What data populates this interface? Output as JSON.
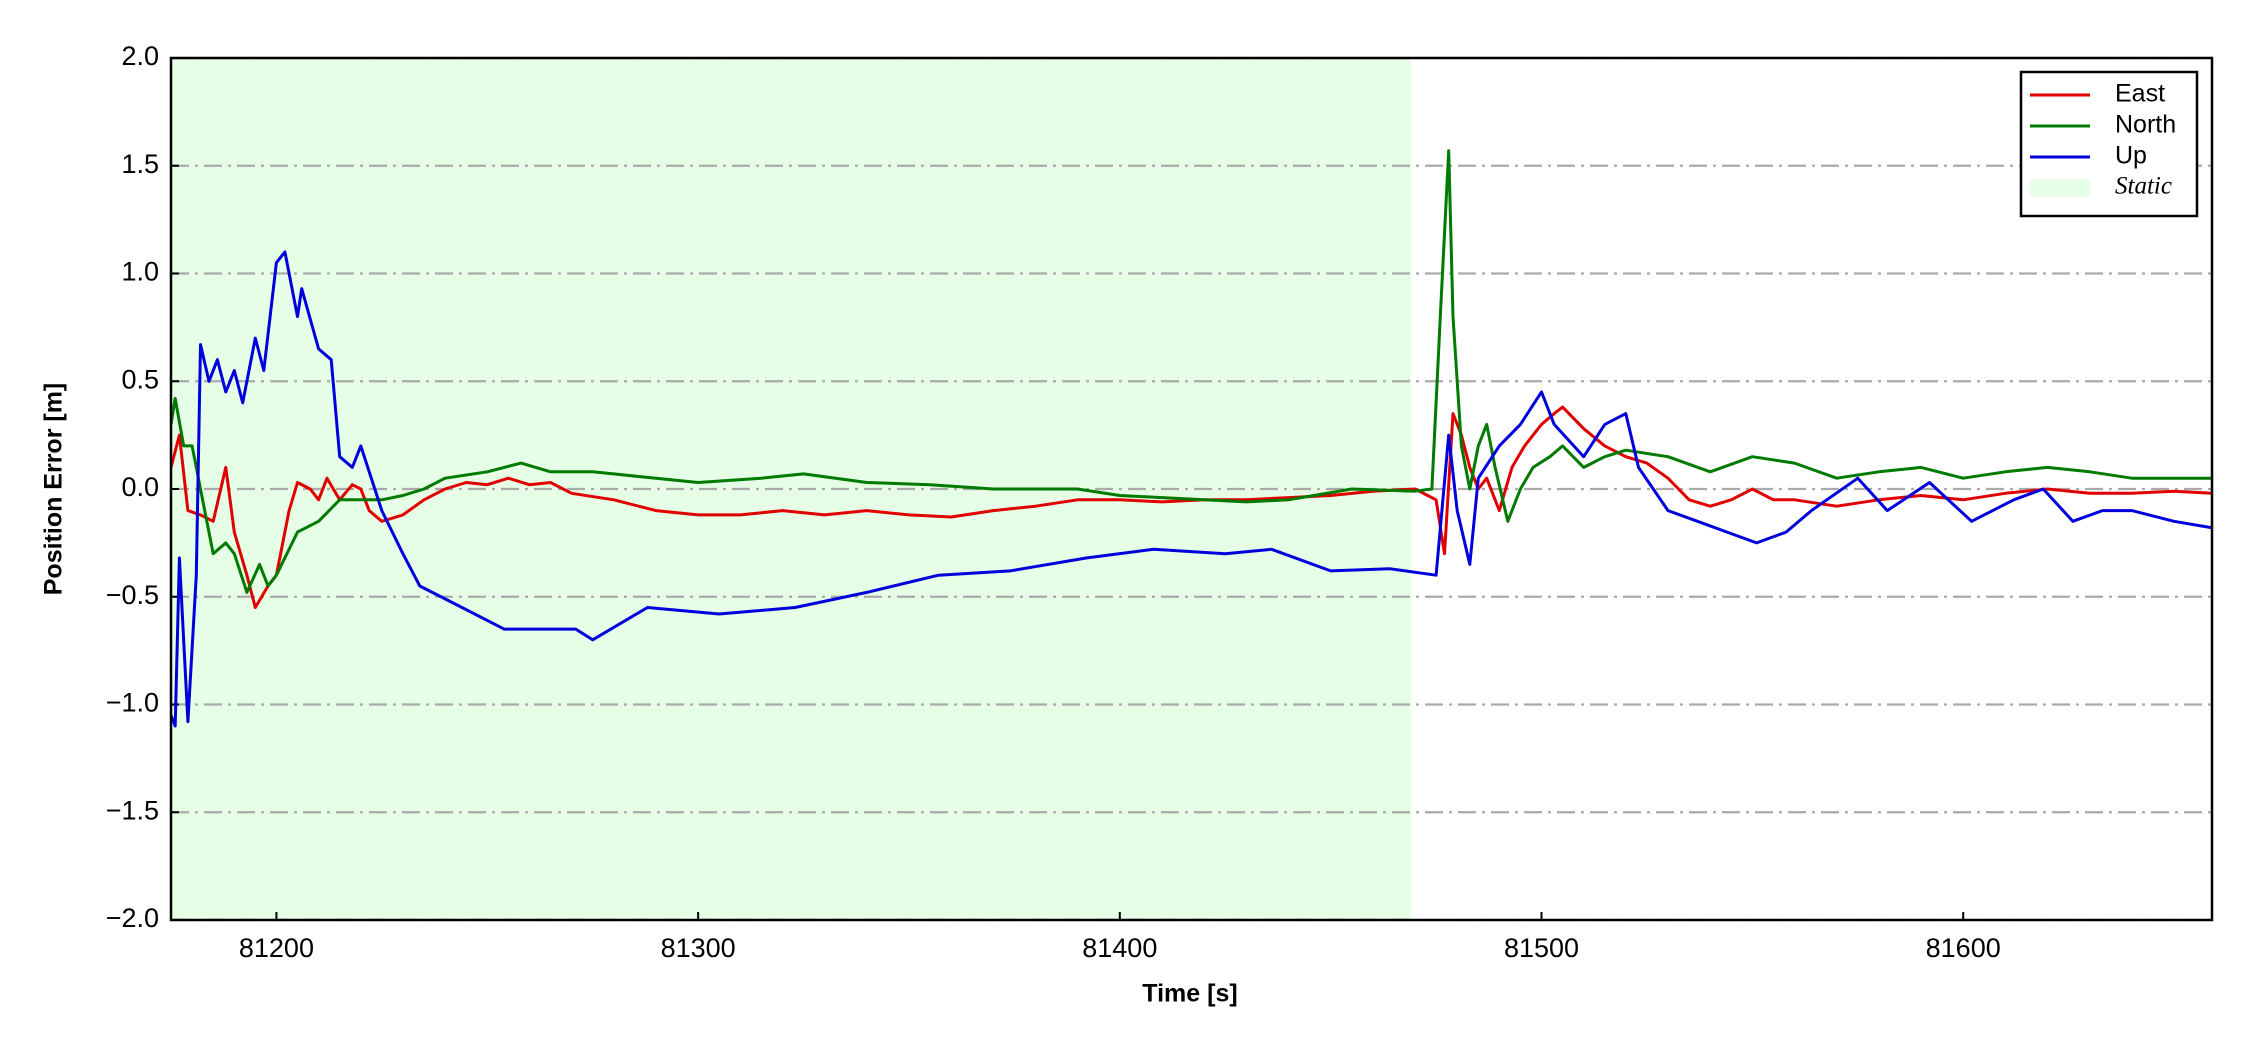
{
  "chart_data": {
    "type": "line",
    "xlabel": "Time [s]",
    "ylabel": "Position Error [m]",
    "xlim": [
      81175,
      81659
    ],
    "ylim": [
      -2,
      2
    ],
    "xticks": [
      81200,
      81300,
      81400,
      81500,
      81600
    ],
    "yticks": [
      {
        "value": -2,
        "label": "−2.0"
      },
      {
        "value": -1.5,
        "label": "−1.5"
      },
      {
        "value": -1,
        "label": "−1.0"
      },
      {
        "value": -0.5,
        "label": "−0.5"
      },
      {
        "value": 0,
        "label": "0.0"
      },
      0.5,
      {
        "value": 1,
        "label": "1.0"
      },
      1.5,
      {
        "value": 2,
        "label": "2.0"
      }
    ],
    "grid": true,
    "legend": "upper right",
    "static_region": {
      "label": "Static",
      "xrange": [
        81175,
        81469
      ],
      "color": "#e6fde6"
    },
    "series": [
      {
        "name": "East",
        "color": "#e00000",
        "x": [
          81175,
          81177,
          81179,
          81182,
          81185,
          81188,
          81190,
          81193,
          81195,
          81198,
          81200,
          81203,
          81205,
          81208,
          81210,
          81212,
          81215,
          81218,
          81220,
          81222,
          81225,
          81230,
          81235,
          81240,
          81245,
          81250,
          81255,
          81260,
          81265,
          81270,
          81280,
          81290,
          81300,
          81310,
          81320,
          81330,
          81340,
          81350,
          81360,
          81370,
          81380,
          81390,
          81400,
          81410,
          81420,
          81430,
          81440,
          81450,
          81460,
          81470,
          81475,
          81477,
          81479,
          81481,
          81483,
          81485,
          81487,
          81490,
          81493,
          81496,
          81500,
          81503,
          81505,
          81510,
          81515,
          81520,
          81525,
          81530,
          81535,
          81540,
          81545,
          81550,
          81555,
          81560,
          81570,
          81580,
          81590,
          81600,
          81610,
          81620,
          81630,
          81640,
          81650,
          81659
        ],
        "values": [
          0.1,
          0.25,
          -0.1,
          -0.12,
          -0.15,
          0.1,
          -0.2,
          -0.4,
          -0.55,
          -0.45,
          -0.4,
          -0.1,
          0.03,
          0.0,
          -0.05,
          0.05,
          -0.05,
          0.02,
          0.0,
          -0.1,
          -0.15,
          -0.12,
          -0.05,
          0.0,
          0.03,
          0.02,
          0.05,
          0.02,
          0.03,
          -0.02,
          -0.05,
          -0.1,
          -0.12,
          -0.12,
          -0.1,
          -0.12,
          -0.1,
          -0.12,
          -0.13,
          -0.1,
          -0.08,
          -0.05,
          -0.05,
          -0.06,
          -0.05,
          -0.05,
          -0.04,
          -0.03,
          -0.01,
          0.0,
          -0.05,
          -0.3,
          0.35,
          0.25,
          0.1,
          0.0,
          0.05,
          -0.1,
          0.1,
          0.2,
          0.3,
          0.35,
          0.38,
          0.28,
          0.2,
          0.15,
          0.12,
          0.05,
          -0.05,
          -0.08,
          -0.05,
          0.0,
          -0.05,
          -0.05,
          -0.08,
          -0.05,
          -0.03,
          -0.05,
          -0.02,
          0.0,
          -0.02,
          -0.02,
          -0.01,
          -0.02
        ]
      },
      {
        "name": "North",
        "color": "#007a00",
        "x": [
          81175,
          81176,
          81178,
          81180,
          81183,
          81185,
          81188,
          81190,
          81193,
          81196,
          81198,
          81200,
          81205,
          81210,
          81215,
          81220,
          81225,
          81230,
          81235,
          81240,
          81250,
          81258,
          81265,
          81275,
          81290,
          81300,
          81315,
          81325,
          81340,
          81355,
          81370,
          81390,
          81400,
          81420,
          81430,
          81440,
          81455,
          81470,
          81474,
          81476,
          81478,
          81479,
          81481,
          81483,
          81485,
          81487,
          81489,
          81492,
          81495,
          81498,
          81502,
          81505,
          81510,
          81515,
          81520,
          81530,
          81540,
          81550,
          81560,
          81570,
          81580,
          81590,
          81600,
          81610,
          81620,
          81630,
          81640,
          81650,
          81659
        ],
        "values": [
          0.3,
          0.42,
          0.2,
          0.2,
          -0.1,
          -0.3,
          -0.25,
          -0.3,
          -0.48,
          -0.35,
          -0.45,
          -0.4,
          -0.2,
          -0.15,
          -0.05,
          -0.05,
          -0.05,
          -0.03,
          0.0,
          0.05,
          0.08,
          0.12,
          0.08,
          0.08,
          0.05,
          0.03,
          0.05,
          0.07,
          0.03,
          0.02,
          0.0,
          0.0,
          -0.03,
          -0.05,
          -0.06,
          -0.05,
          0.0,
          -0.01,
          0.0,
          0.8,
          1.57,
          0.8,
          0.2,
          0.0,
          0.2,
          0.3,
          0.1,
          -0.15,
          0.0,
          0.1,
          0.15,
          0.2,
          0.1,
          0.15,
          0.18,
          0.15,
          0.08,
          0.15,
          0.12,
          0.05,
          0.08,
          0.1,
          0.05,
          0.08,
          0.1,
          0.08,
          0.05,
          0.05,
          0.05
        ]
      },
      {
        "name": "Up",
        "color": "#0000dd",
        "x": [
          81175,
          81176,
          81177,
          81179,
          81181,
          81182,
          81184,
          81186,
          81188,
          81190,
          81192,
          81195,
          81197,
          81200,
          81202,
          81205,
          81206,
          81210,
          81213,
          81215,
          81218,
          81220,
          81225,
          81230,
          81234,
          81244,
          81254,
          81271,
          81275,
          81288,
          81305,
          81323,
          81340,
          81357,
          81374,
          81392,
          81408,
          81425,
          81436,
          81450,
          81464,
          81475,
          81478,
          81480,
          81483,
          81485,
          81490,
          81495,
          81500,
          81503,
          81510,
          81515,
          81520,
          81523,
          81530,
          81537,
          81544,
          81551,
          81558,
          81564,
          81575,
          81582,
          81592,
          81602,
          81612,
          81619,
          81626,
          81633,
          81640,
          81650,
          81659
        ],
        "values": [
          -1.05,
          -1.1,
          -0.32,
          -1.08,
          -0.4,
          0.67,
          0.5,
          0.6,
          0.45,
          0.55,
          0.4,
          0.7,
          0.55,
          1.05,
          1.1,
          0.8,
          0.93,
          0.65,
          0.6,
          0.15,
          0.1,
          0.2,
          -0.1,
          -0.3,
          -0.45,
          -0.55,
          -0.65,
          -0.65,
          -0.7,
          -0.55,
          -0.58,
          -0.55,
          -0.48,
          -0.4,
          -0.38,
          -0.32,
          -0.28,
          -0.3,
          -0.28,
          -0.38,
          -0.37,
          -0.4,
          0.25,
          -0.1,
          -0.35,
          0.05,
          0.2,
          0.3,
          0.45,
          0.3,
          0.15,
          0.3,
          0.35,
          0.1,
          -0.1,
          -0.15,
          -0.2,
          -0.25,
          -0.2,
          -0.1,
          0.05,
          -0.1,
          0.03,
          -0.15,
          -0.05,
          0.0,
          -0.15,
          -0.1,
          -0.1,
          -0.15,
          -0.18
        ]
      }
    ]
  }
}
